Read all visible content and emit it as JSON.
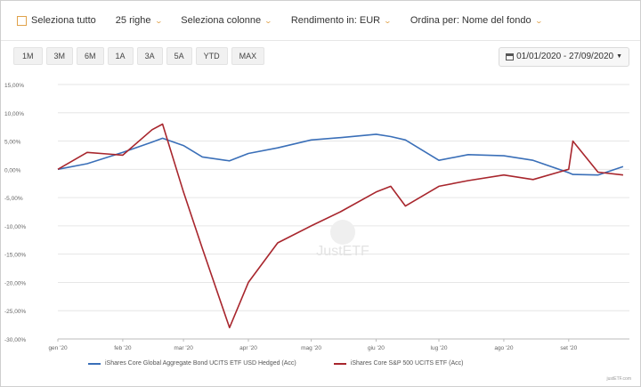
{
  "toolbar": {
    "select_all": "Seleziona tutto",
    "rows": "25 righe",
    "select_columns": "Seleziona colonne",
    "return_in": "Rendimento in: EUR",
    "order_by": "Ordina per: Nome del fondo"
  },
  "periods": [
    "1M",
    "3M",
    "6M",
    "1A",
    "3A",
    "5A",
    "YTD",
    "MAX"
  ],
  "date_range": "01/01/2020 - 27/09/2020",
  "watermark": "JustETF",
  "credit": "justETF.com",
  "colors": {
    "accent": "#e0a24a",
    "bond": "#3a6fb8",
    "sp500": "#a8262d"
  },
  "chart_data": {
    "type": "line",
    "x": [
      "2020-01-01",
      "2020-01-15",
      "2020-02-01",
      "2020-02-15",
      "2020-02-20",
      "2020-03-01",
      "2020-03-10",
      "2020-03-23",
      "2020-04-01",
      "2020-04-15",
      "2020-05-01",
      "2020-05-15",
      "2020-06-01",
      "2020-06-08",
      "2020-06-15",
      "2020-07-01",
      "2020-07-15",
      "2020-08-01",
      "2020-08-15",
      "2020-09-01",
      "2020-09-03",
      "2020-09-15",
      "2020-09-27"
    ],
    "series": [
      {
        "name": "iShares Core Global Aggregate Bond UCITS ETF USD Hedged (Acc)",
        "values": [
          0,
          1.0,
          3.0,
          4.8,
          5.5,
          4.2,
          2.2,
          1.5,
          2.8,
          3.8,
          5.2,
          5.6,
          6.2,
          5.8,
          5.2,
          1.6,
          2.6,
          2.4,
          1.6,
          -0.6,
          -0.9,
          -1.0,
          0.5
        ]
      },
      {
        "name": "iShares Core S&P 500 UCITS ETF (Acc)",
        "values": [
          0,
          3.0,
          2.5,
          7.0,
          8.0,
          -4.0,
          -14.0,
          -28.0,
          -20.0,
          -13.0,
          -10.0,
          -7.5,
          -4.0,
          -3.0,
          -6.5,
          -3.0,
          -2.0,
          -1.0,
          -1.8,
          0.0,
          5.0,
          -0.5,
          -1.0
        ]
      }
    ],
    "yticks": [
      "15,00%",
      "10,00%",
      "5,00%",
      "0,00%",
      "-5,00%",
      "-10,00%",
      "-15,00%",
      "-20,00%",
      "-25,00%",
      "-30,00%"
    ],
    "ylim": [
      -30,
      15
    ],
    "xticks": [
      "gen '20",
      "feb '20",
      "mar '20",
      "apr '20",
      "mag '20",
      "giu '20",
      "lug '20",
      "ago '20",
      "set '20"
    ],
    "grid": true,
    "legend": "bottom"
  }
}
